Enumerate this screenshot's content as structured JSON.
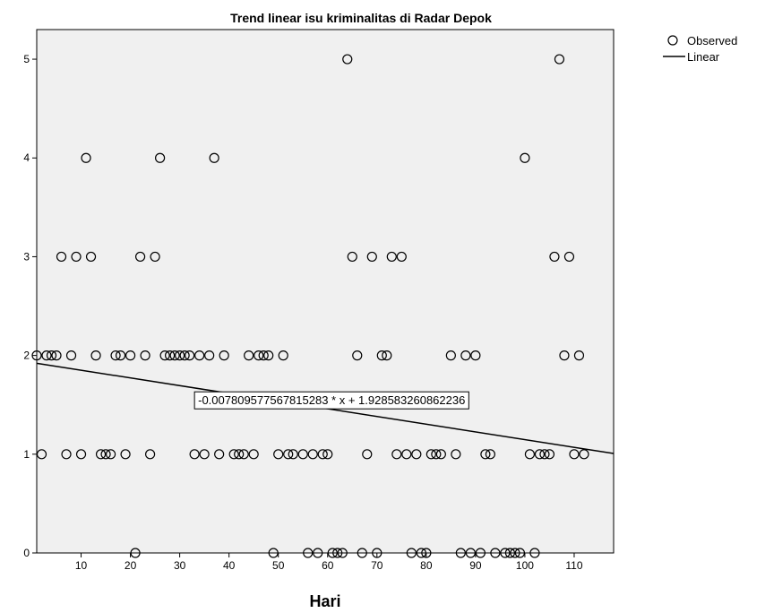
{
  "chart_data": {
    "type": "scatter",
    "title": "Trend linear isu kriminalitas di Radar Depok",
    "xlabel": "Hari",
    "ylabel": "",
    "xlim": [
      1,
      118
    ],
    "ylim": [
      0,
      5.3
    ],
    "x_ticks": [
      10,
      20,
      30,
      40,
      50,
      60,
      70,
      80,
      90,
      100,
      110
    ],
    "y_ticks": [
      0,
      1,
      2,
      3,
      4,
      5
    ],
    "grid": false,
    "legend_position": "top-right outside",
    "colors": {
      "plot_background": "#f0f0f0",
      "marker_stroke": "#000000",
      "line": "#000000"
    },
    "series": [
      {
        "name": "Observed",
        "marker": "open-circle",
        "points": [
          [
            1,
            2
          ],
          [
            2,
            1
          ],
          [
            3,
            2
          ],
          [
            4,
            2
          ],
          [
            5,
            2
          ],
          [
            6,
            3
          ],
          [
            7,
            1
          ],
          [
            8,
            2
          ],
          [
            9,
            3
          ],
          [
            10,
            1
          ],
          [
            11,
            4
          ],
          [
            12,
            3
          ],
          [
            13,
            2
          ],
          [
            14,
            1
          ],
          [
            15,
            1
          ],
          [
            16,
            1
          ],
          [
            17,
            2
          ],
          [
            18,
            2
          ],
          [
            19,
            1
          ],
          [
            20,
            2
          ],
          [
            21,
            0
          ],
          [
            22,
            3
          ],
          [
            23,
            2
          ],
          [
            24,
            1
          ],
          [
            25,
            3
          ],
          [
            26,
            4
          ],
          [
            27,
            2
          ],
          [
            28,
            2
          ],
          [
            29,
            2
          ],
          [
            30,
            2
          ],
          [
            31,
            2
          ],
          [
            32,
            2
          ],
          [
            33,
            1
          ],
          [
            34,
            2
          ],
          [
            35,
            1
          ],
          [
            36,
            2
          ],
          [
            37,
            4
          ],
          [
            38,
            1
          ],
          [
            39,
            2
          ],
          [
            41,
            1
          ],
          [
            42,
            1
          ],
          [
            43,
            1
          ],
          [
            44,
            2
          ],
          [
            45,
            1
          ],
          [
            46,
            2
          ],
          [
            47,
            2
          ],
          [
            48,
            2
          ],
          [
            49,
            0
          ],
          [
            50,
            1
          ],
          [
            51,
            2
          ],
          [
            52,
            1
          ],
          [
            53,
            1
          ],
          [
            55,
            1
          ],
          [
            56,
            0
          ],
          [
            57,
            1
          ],
          [
            58,
            0
          ],
          [
            59,
            1
          ],
          [
            60,
            1
          ],
          [
            61,
            0
          ],
          [
            62,
            0
          ],
          [
            63,
            0
          ],
          [
            64,
            5
          ],
          [
            65,
            3
          ],
          [
            66,
            2
          ],
          [
            67,
            0
          ],
          [
            68,
            1
          ],
          [
            69,
            3
          ],
          [
            70,
            0
          ],
          [
            71,
            2
          ],
          [
            72,
            2
          ],
          [
            73,
            3
          ],
          [
            74,
            1
          ],
          [
            75,
            3
          ],
          [
            76,
            1
          ],
          [
            77,
            0
          ],
          [
            78,
            1
          ],
          [
            79,
            0
          ],
          [
            80,
            0
          ],
          [
            81,
            1
          ],
          [
            82,
            1
          ],
          [
            83,
            1
          ],
          [
            85,
            2
          ],
          [
            86,
            1
          ],
          [
            87,
            0
          ],
          [
            88,
            2
          ],
          [
            89,
            0
          ],
          [
            90,
            2
          ],
          [
            91,
            0
          ],
          [
            92,
            1
          ],
          [
            93,
            1
          ],
          [
            94,
            0
          ],
          [
            96,
            0
          ],
          [
            97,
            0
          ],
          [
            98,
            0
          ],
          [
            99,
            0
          ],
          [
            100,
            4
          ],
          [
            101,
            1
          ],
          [
            102,
            0
          ],
          [
            103,
            1
          ],
          [
            104,
            1
          ],
          [
            105,
            1
          ],
          [
            106,
            3
          ],
          [
            107,
            5
          ],
          [
            108,
            2
          ],
          [
            109,
            3
          ],
          [
            110,
            1
          ],
          [
            111,
            2
          ],
          [
            112,
            1
          ]
        ]
      },
      {
        "name": "Linear",
        "type": "line",
        "slope": -0.00780957756781528,
        "intercept": 1.928583260862236,
        "x_range": [
          1,
          118
        ]
      }
    ],
    "annotations": [
      {
        "text": "-0.007809577567815283 * x + 1.928583260862236",
        "anchor_x": 33,
        "anchor_y": 1.55
      }
    ]
  }
}
